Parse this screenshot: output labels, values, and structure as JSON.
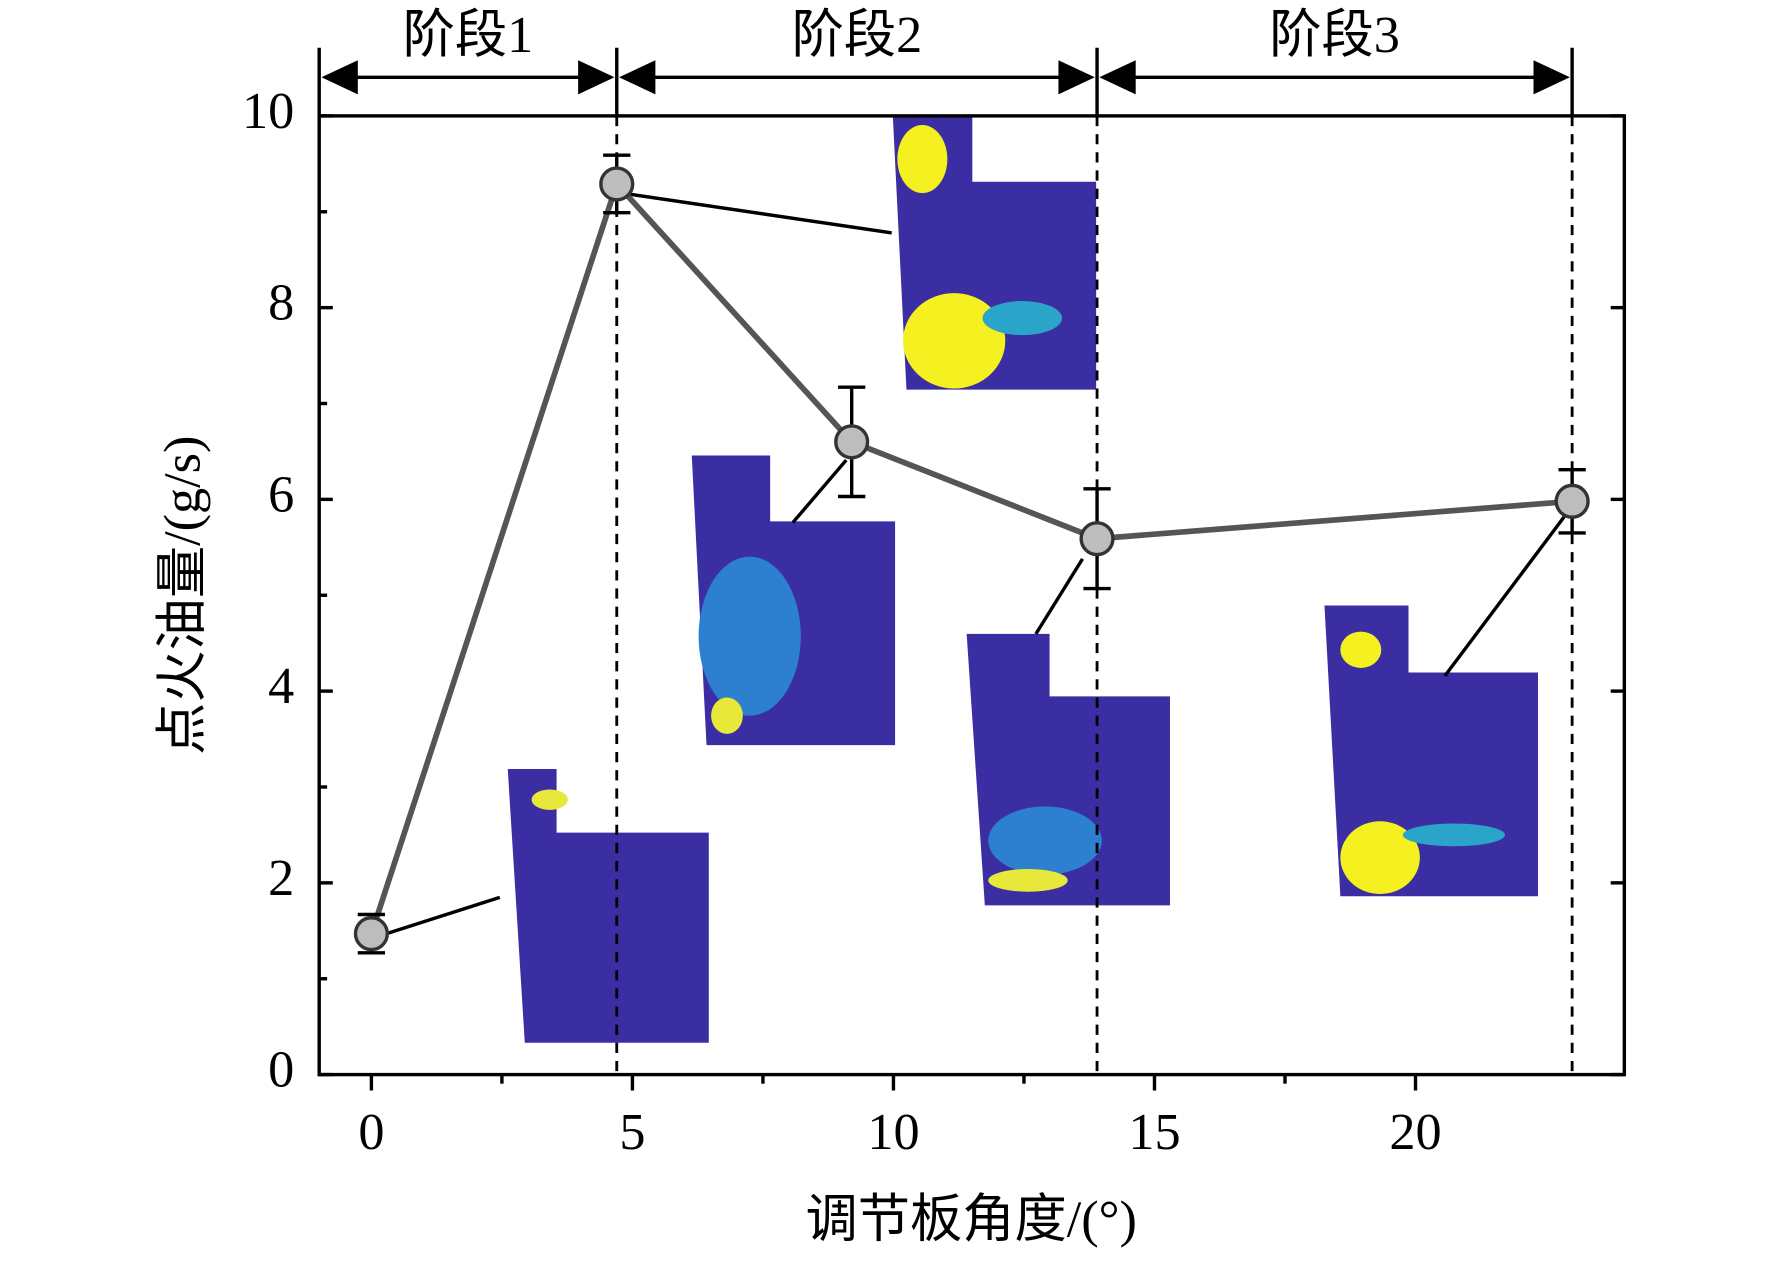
{
  "chart_data": {
    "type": "line",
    "xlabel": "调节板角度/(°)",
    "ylabel": "点火油量/(g/s)",
    "x": [
      0,
      4.7,
      9.2,
      13.9,
      23.0
    ],
    "series": [
      {
        "color": "#555555",
        "marker_color": "#bdbdbd",
        "values": [
          1.47,
          9.29,
          6.6,
          5.59,
          5.98
        ],
        "errors": [
          0.2,
          0.3,
          0.57,
          0.52,
          0.33
        ]
      }
    ],
    "xlim": [
      -1,
      24
    ],
    "ylim": [
      0,
      10
    ],
    "xticks": [
      0,
      5,
      10,
      15,
      20
    ],
    "yticks": [
      0,
      2,
      4,
      6,
      8,
      10
    ],
    "stages": [
      {
        "label": "阶段1"
      },
      {
        "label": "阶段2"
      },
      {
        "label": "阶段3"
      }
    ]
  }
}
